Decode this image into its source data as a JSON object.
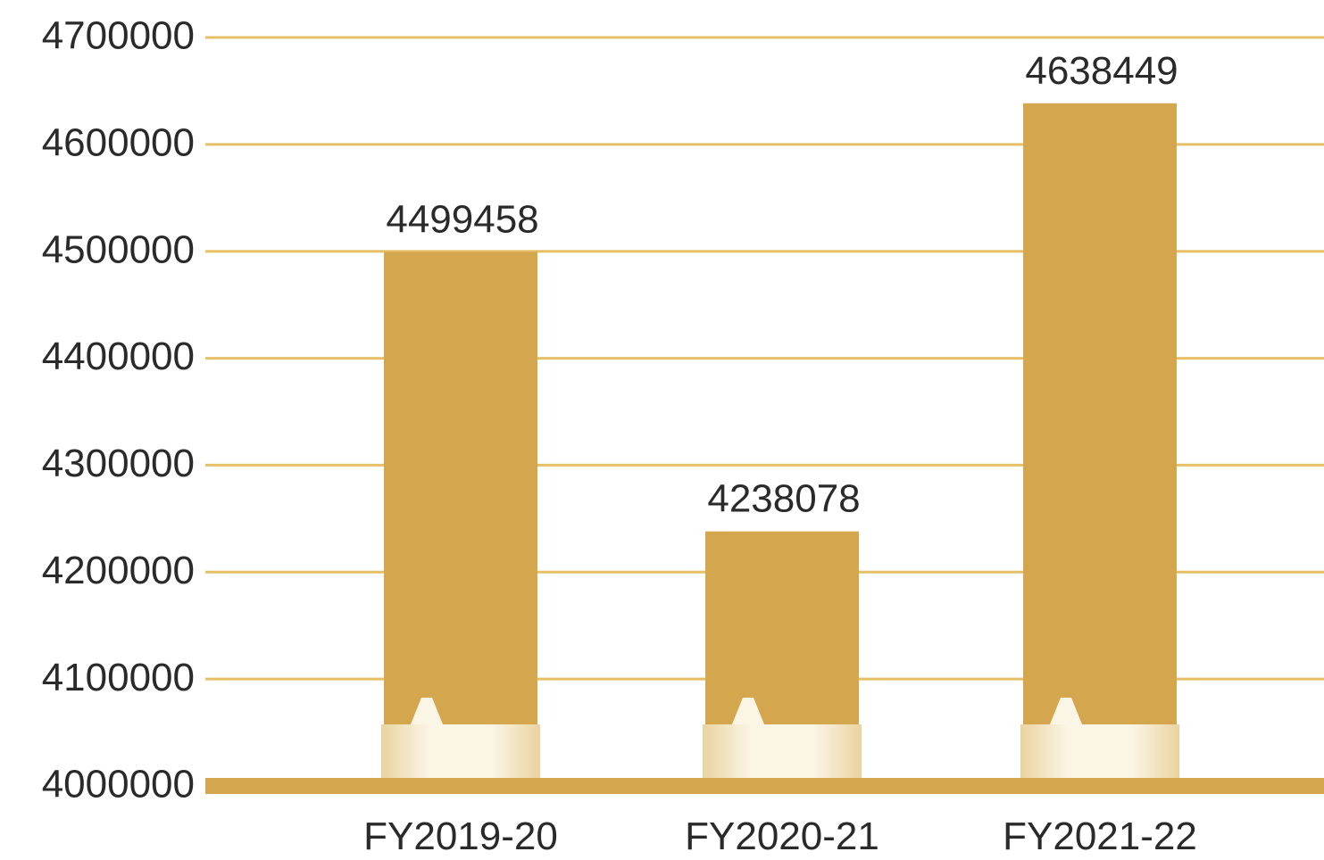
{
  "chart_data": {
    "type": "bar",
    "title": "",
    "xlabel": "",
    "ylabel": "",
    "categories": [
      "FY2019-20",
      "FY2020-21",
      "FY2021-22"
    ],
    "values": [
      4499458,
      4238078,
      4638449
    ],
    "value_labels": [
      "4499458",
      "4238078",
      "4638449"
    ],
    "ylim": [
      4000000,
      4700000
    ],
    "y_ticks": [
      4000000,
      4100000,
      4200000,
      4300000,
      4400000,
      4500000,
      4600000,
      4700000
    ],
    "y_tick_labels": [
      "4000000",
      "4100000",
      "4200000",
      "4300000",
      "4400000",
      "4500000",
      "4600000",
      "4700000"
    ],
    "axis_break": true,
    "grid": true,
    "colors": {
      "bar": "#d4a64e",
      "gridline": "#e6c067",
      "axis": "#d4a64e",
      "break_base_light": "#fbf5e6"
    }
  }
}
